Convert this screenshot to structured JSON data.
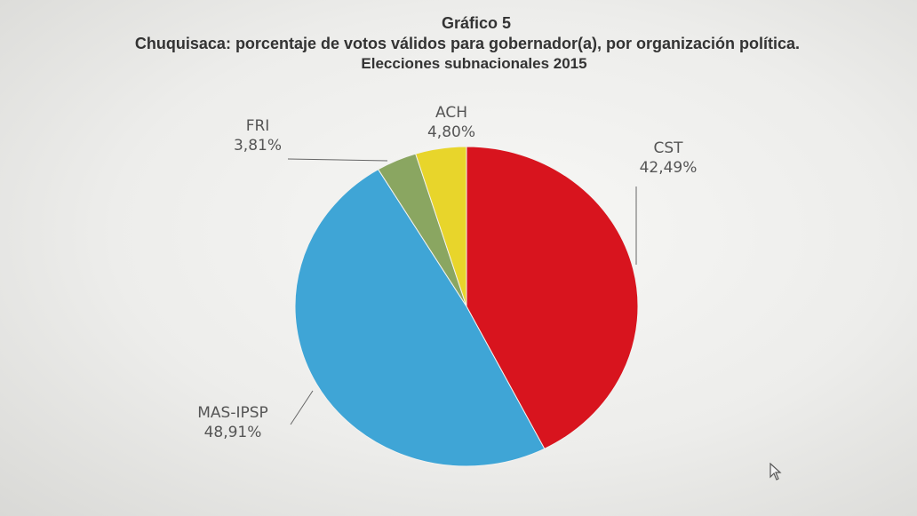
{
  "title": {
    "line1": "Gráfico 5",
    "line2": "Chuquisaca: porcentaje de votos válidos para gobernador(a), por organización política.",
    "line3": "Elecciones subnacionales 2015"
  },
  "colors": {
    "CST": "#d8141e",
    "MAS-IPSP": "#3fa5d6",
    "FRI": "#8aa661",
    "ACH": "#e8d52b",
    "text": "#555555",
    "leader": "#666666"
  },
  "chart_data": {
    "type": "pie",
    "title": "Chuquisaca: porcentaje de votos válidos para gobernador(a), por organización política. Elecciones subnacionales 2015",
    "start_angle_deg": 0,
    "direction": "clockwise",
    "slices": [
      {
        "label": "CST",
        "value": 42.49,
        "value_text": "42,49%"
      },
      {
        "label": "MAS-IPSP",
        "value": 48.91,
        "value_text": "48,91%"
      },
      {
        "label": "FRI",
        "value": 3.81,
        "value_text": "3,81%"
      },
      {
        "label": "ACH",
        "value": 4.8,
        "value_text": "4,80%"
      }
    ],
    "legend": "none",
    "data_labels": "outside with leader lines"
  }
}
